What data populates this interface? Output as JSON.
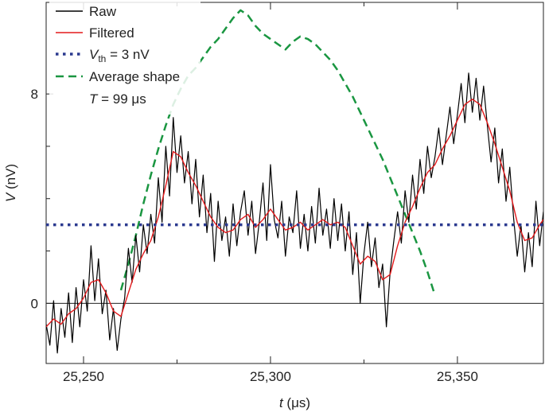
{
  "chart_data": {
    "type": "line",
    "xlabel": {
      "var": "t",
      "unit": " (μs)"
    },
    "ylabel": {
      "var": "V",
      "unit": " (nV)"
    },
    "xlim": [
      25240,
      25373
    ],
    "ylim": [
      -2.3,
      11.5
    ],
    "x_ticks": [
      25250,
      25300,
      25350
    ],
    "x_tick_labels": [
      "25,250",
      "25,300",
      "25,350"
    ],
    "x_minor_ticks": [
      25275,
      25325
    ],
    "y_ticks": [
      0,
      8
    ],
    "y_tick_labels": [
      "0",
      "8"
    ],
    "y_minor_ticks": [
      2,
      4,
      6
    ],
    "zero_line": true,
    "legend": {
      "placement": "top-left",
      "entries": [
        {
          "label": "Raw",
          "series": "raw"
        },
        {
          "label": "Filtered",
          "series": "filtered"
        },
        {
          "label": "V",
          "sub": "th",
          "rest": " = 3 nV",
          "series": "threshold"
        },
        {
          "label": "Average shape",
          "line2_var": "T",
          "line2_rest": " = 99 μs",
          "series": "average"
        }
      ]
    },
    "series": [
      {
        "name": "Raw",
        "key": "raw",
        "color": "#000000",
        "style": "solid",
        "points": [
          [
            25240,
            -0.8
          ],
          [
            25241,
            -1.6
          ],
          [
            25242,
            0.1
          ],
          [
            25243,
            -1.9
          ],
          [
            25244,
            -0.2
          ],
          [
            25245,
            -1.3
          ],
          [
            25246,
            0.4
          ],
          [
            25247,
            -1.5
          ],
          [
            25248,
            0.6
          ],
          [
            25249,
            -0.9
          ],
          [
            25250,
            0.9
          ],
          [
            25251,
            -0.3
          ],
          [
            25252,
            2.2
          ],
          [
            25253,
            0.1
          ],
          [
            25254,
            1.7
          ],
          [
            25255,
            -0.4
          ],
          [
            25256,
            0.5
          ],
          [
            25257,
            -1.4
          ],
          [
            25258,
            -0.2
          ],
          [
            25259,
            -1.8
          ],
          [
            25260,
            -0.6
          ],
          [
            25261,
            0.2
          ],
          [
            25262,
            2.1
          ],
          [
            25263,
            0.8
          ],
          [
            25264,
            2.6
          ],
          [
            25265,
            1.2
          ],
          [
            25266,
            3.0
          ],
          [
            25267,
            1.9
          ],
          [
            25268,
            3.4
          ],
          [
            25269,
            2.3
          ],
          [
            25270,
            4.8
          ],
          [
            25271,
            3.1
          ],
          [
            25272,
            6.0
          ],
          [
            25273,
            4.1
          ],
          [
            25274,
            7.1
          ],
          [
            25275,
            5.0
          ],
          [
            25276,
            6.4
          ],
          [
            25277,
            4.6
          ],
          [
            25278,
            5.8
          ],
          [
            25279,
            3.8
          ],
          [
            25280,
            5.5
          ],
          [
            25281,
            3.3
          ],
          [
            25282,
            4.9
          ],
          [
            25283,
            2.7
          ],
          [
            25284,
            4.2
          ],
          [
            25285,
            1.6
          ],
          [
            25286,
            3.9
          ],
          [
            25287,
            2.4
          ],
          [
            25288,
            3.3
          ],
          [
            25289,
            1.8
          ],
          [
            25290,
            3.8
          ],
          [
            25291,
            2.2
          ],
          [
            25292,
            3.5
          ],
          [
            25293,
            4.3
          ],
          [
            25294,
            2.6
          ],
          [
            25295,
            3.9
          ],
          [
            25296,
            1.9
          ],
          [
            25297,
            3.1
          ],
          [
            25298,
            4.6
          ],
          [
            25299,
            2.4
          ],
          [
            25300,
            5.3
          ],
          [
            25301,
            3.2
          ],
          [
            25302,
            2.5
          ],
          [
            25303,
            3.9
          ],
          [
            25304,
            1.8
          ],
          [
            25305,
            3.3
          ],
          [
            25306,
            2.7
          ],
          [
            25307,
            4.3
          ],
          [
            25308,
            2.1
          ],
          [
            25309,
            3.4
          ],
          [
            25310,
            2.0
          ],
          [
            25311,
            3.7
          ],
          [
            25312,
            2.3
          ],
          [
            25313,
            4.4
          ],
          [
            25314,
            2.6
          ],
          [
            25315,
            3.6
          ],
          [
            25316,
            2.1
          ],
          [
            25317,
            4.0
          ],
          [
            25318,
            2.4
          ],
          [
            25319,
            3.8
          ],
          [
            25320,
            2.0
          ],
          [
            25321,
            3.5
          ],
          [
            25322,
            1.1
          ],
          [
            25323,
            2.7
          ],
          [
            25324,
            0.0
          ],
          [
            25325,
            1.9
          ],
          [
            25326,
            3.1
          ],
          [
            25327,
            1.4
          ],
          [
            25328,
            2.5
          ],
          [
            25329,
            0.6
          ],
          [
            25330,
            1.5
          ],
          [
            25331,
            -0.9
          ],
          [
            25332,
            1.2
          ],
          [
            25333,
            2.4
          ],
          [
            25334,
            3.5
          ],
          [
            25335,
            2.3
          ],
          [
            25336,
            4.3
          ],
          [
            25337,
            3.1
          ],
          [
            25338,
            4.9
          ],
          [
            25339,
            3.6
          ],
          [
            25340,
            5.5
          ],
          [
            25341,
            4.2
          ],
          [
            25342,
            6.0
          ],
          [
            25343,
            4.8
          ],
          [
            25344,
            5.6
          ],
          [
            25345,
            6.7
          ],
          [
            25346,
            5.3
          ],
          [
            25347,
            6.4
          ],
          [
            25348,
            7.5
          ],
          [
            25349,
            6.1
          ],
          [
            25350,
            7.2
          ],
          [
            25351,
            8.4
          ],
          [
            25352,
            6.9
          ],
          [
            25353,
            8.8
          ],
          [
            25354,
            7.3
          ],
          [
            25355,
            8.6
          ],
          [
            25356,
            7.0
          ],
          [
            25357,
            8.3
          ],
          [
            25358,
            6.8
          ],
          [
            25359,
            5.4
          ],
          [
            25360,
            6.7
          ],
          [
            25361,
            4.6
          ],
          [
            25362,
            5.9
          ],
          [
            25363,
            3.9
          ],
          [
            25364,
            5.2
          ],
          [
            25365,
            3.3
          ],
          [
            25366,
            1.8
          ],
          [
            25367,
            3.0
          ],
          [
            25368,
            1.2
          ],
          [
            25369,
            2.7
          ],
          [
            25370,
            1.4
          ],
          [
            25371,
            3.9
          ],
          [
            25372,
            2.2
          ],
          [
            25373,
            3.5
          ]
        ]
      },
      {
        "name": "Filtered",
        "key": "filtered",
        "color": "#e31a1c",
        "style": "solid",
        "points": [
          [
            25240,
            -0.9
          ],
          [
            25242,
            -0.6
          ],
          [
            25244,
            -0.8
          ],
          [
            25246,
            -0.4
          ],
          [
            25248,
            -0.2
          ],
          [
            25250,
            0.2
          ],
          [
            25252,
            0.8
          ],
          [
            25254,
            0.9
          ],
          [
            25256,
            0.4
          ],
          [
            25258,
            -0.3
          ],
          [
            25260,
            -0.5
          ],
          [
            25262,
            0.4
          ],
          [
            25264,
            1.3
          ],
          [
            25266,
            1.9
          ],
          [
            25268,
            2.4
          ],
          [
            25270,
            3.3
          ],
          [
            25272,
            4.5
          ],
          [
            25274,
            5.8
          ],
          [
            25276,
            5.6
          ],
          [
            25278,
            5.0
          ],
          [
            25280,
            4.5
          ],
          [
            25282,
            3.9
          ],
          [
            25284,
            3.3
          ],
          [
            25286,
            2.9
          ],
          [
            25288,
            2.7
          ],
          [
            25290,
            2.8
          ],
          [
            25292,
            3.2
          ],
          [
            25294,
            3.4
          ],
          [
            25296,
            2.9
          ],
          [
            25298,
            3.2
          ],
          [
            25300,
            3.6
          ],
          [
            25302,
            3.2
          ],
          [
            25304,
            2.8
          ],
          [
            25306,
            2.9
          ],
          [
            25308,
            3.1
          ],
          [
            25310,
            2.8
          ],
          [
            25312,
            3.0
          ],
          [
            25314,
            3.2
          ],
          [
            25316,
            3.0
          ],
          [
            25318,
            3.1
          ],
          [
            25320,
            2.9
          ],
          [
            25322,
            2.2
          ],
          [
            25324,
            1.5
          ],
          [
            25326,
            1.8
          ],
          [
            25328,
            1.6
          ],
          [
            25330,
            0.9
          ],
          [
            25332,
            1.1
          ],
          [
            25334,
            2.2
          ],
          [
            25336,
            3.1
          ],
          [
            25338,
            3.7
          ],
          [
            25340,
            4.4
          ],
          [
            25342,
            5.0
          ],
          [
            25344,
            5.3
          ],
          [
            25346,
            5.9
          ],
          [
            25348,
            6.4
          ],
          [
            25350,
            7.0
          ],
          [
            25352,
            7.6
          ],
          [
            25354,
            7.8
          ],
          [
            25356,
            7.6
          ],
          [
            25358,
            6.9
          ],
          [
            25360,
            6.1
          ],
          [
            25362,
            5.2
          ],
          [
            25364,
            4.3
          ],
          [
            25366,
            3.1
          ],
          [
            25368,
            2.4
          ],
          [
            25370,
            2.5
          ],
          [
            25372,
            3.0
          ],
          [
            25373,
            3.2
          ]
        ]
      },
      {
        "name": "V th = 3 nV",
        "key": "threshold",
        "color": "#2b3a8f",
        "style": "dotted",
        "points": [
          [
            25240,
            3.0
          ],
          [
            25373,
            3.0
          ]
        ]
      },
      {
        "name": "Average shape",
        "key": "average",
        "color": "#1a9641",
        "style": "dashed",
        "points": [
          [
            25260,
            0.5
          ],
          [
            25262,
            1.5
          ],
          [
            25264,
            2.6
          ],
          [
            25266,
            3.8
          ],
          [
            25268,
            4.9
          ],
          [
            25270,
            5.9
          ],
          [
            25272,
            6.8
          ],
          [
            25274,
            7.6
          ],
          [
            25276,
            8.2
          ],
          [
            25278,
            8.7
          ],
          [
            25280,
            9.0
          ],
          [
            25282,
            9.4
          ],
          [
            25284,
            9.8
          ],
          [
            25286,
            10.1
          ],
          [
            25288,
            10.5
          ],
          [
            25290,
            10.9
          ],
          [
            25292,
            11.2
          ],
          [
            25294,
            11.0
          ],
          [
            25296,
            10.6
          ],
          [
            25298,
            10.3
          ],
          [
            25300,
            10.1
          ],
          [
            25302,
            9.9
          ],
          [
            25304,
            9.7
          ],
          [
            25306,
            10.0
          ],
          [
            25308,
            10.2
          ],
          [
            25310,
            10.1
          ],
          [
            25312,
            9.9
          ],
          [
            25314,
            9.6
          ],
          [
            25316,
            9.3
          ],
          [
            25318,
            8.9
          ],
          [
            25320,
            8.4
          ],
          [
            25322,
            7.9
          ],
          [
            25324,
            7.3
          ],
          [
            25326,
            6.7
          ],
          [
            25328,
            6.1
          ],
          [
            25330,
            5.5
          ],
          [
            25332,
            4.8
          ],
          [
            25334,
            4.1
          ],
          [
            25336,
            3.4
          ],
          [
            25338,
            2.7
          ],
          [
            25340,
            2.0
          ],
          [
            25342,
            1.2
          ],
          [
            25344,
            0.3
          ]
        ]
      }
    ]
  }
}
